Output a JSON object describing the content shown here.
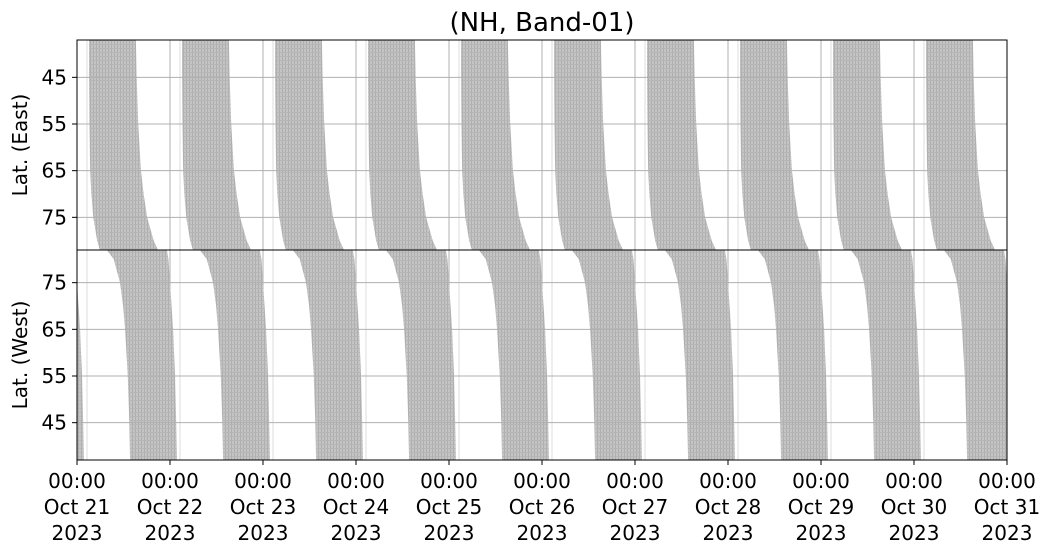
{
  "chart_data": {
    "type": "area",
    "title": "(NH, Band-01)",
    "panels": [
      {
        "name": "east",
        "ylabel": "Lat. (East)",
        "ylim": [
          37,
          82
        ],
        "y_inverted": true,
        "yticks": [
          45,
          55,
          65,
          75
        ],
        "band_profile_hours_utc": {
          "lat": [
            37,
            45,
            55,
            65,
            70,
            75,
            80,
            82
          ],
          "start": [
            3.1,
            3.1,
            3.2,
            3.4,
            3.7,
            4.2,
            5.2,
            5.9
          ],
          "end": [
            15.2,
            15.4,
            15.8,
            16.5,
            17.2,
            18.1,
            19.8,
            20.9
          ]
        }
      },
      {
        "name": "west",
        "ylabel": "Lat. (West)",
        "ylim": [
          37,
          82
        ],
        "y_inverted": false,
        "yticks": [
          45,
          55,
          65,
          75
        ],
        "band_profile_hours_utc": {
          "lat": [
            82,
            80,
            75,
            70,
            65,
            55,
            45,
            37
          ],
          "start": [
            7.7,
            9.5,
            11.1,
            11.9,
            12.4,
            13.1,
            13.5,
            13.7
          ],
          "end": [
            23.2,
            23.6,
            24.0,
            24.4,
            24.8,
            25.3,
            25.6,
            25.8
          ]
        }
      }
    ],
    "xlim": [
      "2023-10-21 00:00",
      "2023-10-31 00:00"
    ],
    "band_repeats": "daily",
    "xticks": [
      [
        "00:00",
        "Oct 21",
        "2023"
      ],
      [
        "00:00",
        "Oct 22",
        "2023"
      ],
      [
        "00:00",
        "Oct 23",
        "2023"
      ],
      [
        "00:00",
        "Oct 24",
        "2023"
      ],
      [
        "00:00",
        "Oct 25",
        "2023"
      ],
      [
        "00:00",
        "Oct 26",
        "2023"
      ],
      [
        "00:00",
        "Oct 27",
        "2023"
      ],
      [
        "00:00",
        "Oct 28",
        "2023"
      ],
      [
        "00:00",
        "Oct 29",
        "2023"
      ],
      [
        "00:00",
        "Oct 30",
        "2023"
      ],
      [
        "00:00",
        "Oct 31",
        "2023"
      ]
    ],
    "grid": true,
    "colors": {
      "band": "#c0c0c0",
      "band_hatch": "#a8a8a8",
      "grid": "#b0b0b0"
    }
  }
}
